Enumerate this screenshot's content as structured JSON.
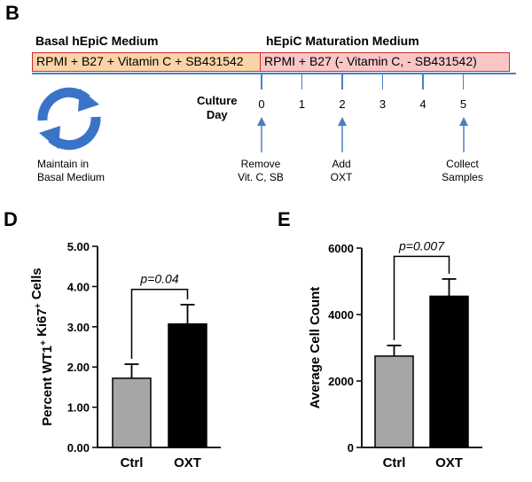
{
  "panel_b": {
    "letter": "B",
    "basal_title": "Basal hEpiC Medium",
    "maturation_title": "hEpiC Maturation Medium",
    "basal_bar": "RPMI + B27 + Vitamin C + SB431542",
    "maturation_bar": "RPMI + B27 (- Vitamin C, - SB431542)",
    "culture_day_label": [
      "Culture",
      "Day"
    ],
    "days": [
      "0",
      "1",
      "2",
      "3",
      "4",
      "5"
    ],
    "maintain_label": [
      "Maintain in",
      "Basal Medium"
    ],
    "events": [
      {
        "day": 0,
        "lines": [
          "Remove",
          "Vit. C, SB"
        ]
      },
      {
        "day": 2,
        "lines": [
          "Add",
          "OXT"
        ]
      },
      {
        "day": 5,
        "lines": [
          "Collect",
          "Samples"
        ]
      }
    ],
    "colors": {
      "basal_fill": "#fbd3a8",
      "maturation_fill": "#f9c6c6",
      "border": "#c9302c",
      "arrow": "#4a7fc4",
      "timeline": "#4a7fc4",
      "cycle_icon": "#3a74c8"
    },
    "icon": "refresh-cycle-icon"
  },
  "chart_data": [
    {
      "panel": "D",
      "type": "bar",
      "categories": [
        "Ctrl",
        "OXT"
      ],
      "values": [
        1.72,
        3.07
      ],
      "errors": [
        0.35,
        0.48
      ],
      "colors": [
        "#a6a6a6",
        "#000000"
      ],
      "ylabel_parts": [
        "Percent WT1",
        "+",
        " Ki67",
        "+",
        " Cells"
      ],
      "ylim": [
        0,
        5
      ],
      "yticks": [
        "0.00",
        "1.00",
        "2.00",
        "3.00",
        "4.00",
        "5.00"
      ],
      "ytick_values": [
        0,
        1,
        2,
        3,
        4,
        5
      ],
      "significance": "p=0.04",
      "significance_top": 3.93,
      "grid": false
    },
    {
      "panel": "E",
      "type": "bar",
      "categories": [
        "Ctrl",
        "OXT"
      ],
      "values": [
        2750,
        4550
      ],
      "errors": [
        320,
        520
      ],
      "colors": [
        "#a6a6a6",
        "#000000"
      ],
      "ylabel_parts": [
        "Average Cell Count"
      ],
      "ylim": [
        0,
        6000
      ],
      "yticks": [
        "0",
        "2000",
        "4000",
        "6000"
      ],
      "ytick_values": [
        0,
        2000,
        4000,
        6000
      ],
      "significance": "p=0.007",
      "significance_top": 5750,
      "grid": false
    }
  ]
}
